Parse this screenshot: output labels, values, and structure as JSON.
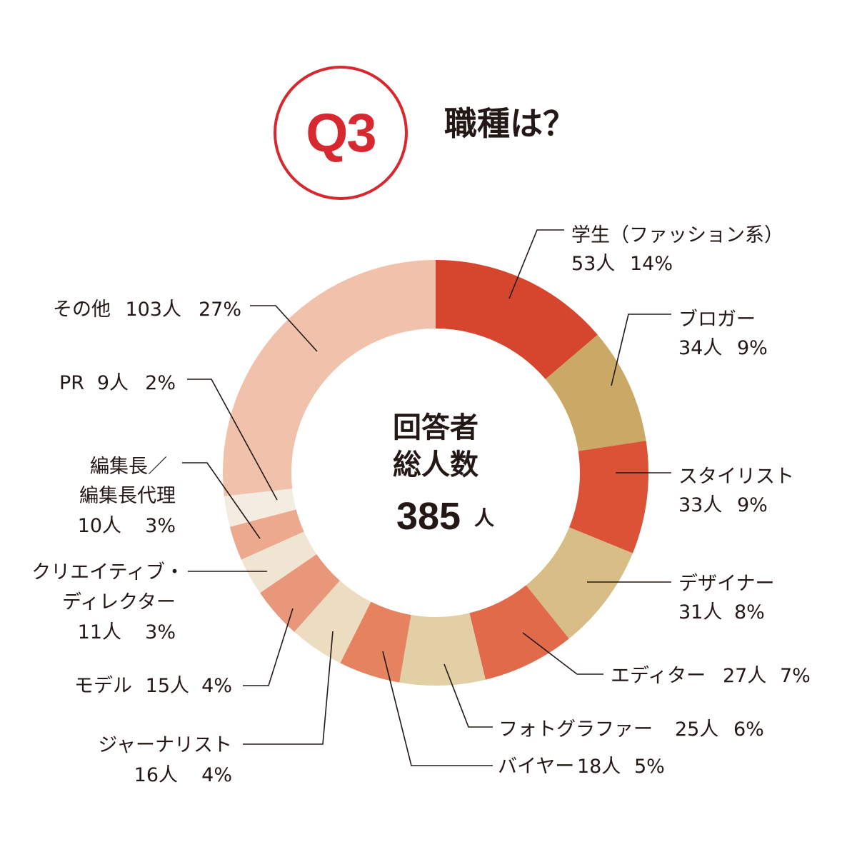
{
  "header": {
    "badge": "Q3",
    "question": "職種は？"
  },
  "center": {
    "line1": "回答者",
    "line2": "総人数",
    "total": "385",
    "unit": "人"
  },
  "colors": {
    "accent": "#d7282f"
  },
  "chart_data": {
    "type": "pie",
    "style": "donut",
    "total": 385,
    "series": [
      {
        "name": "学生（ファッション系）",
        "count": 53,
        "percent": 14,
        "count_label": "53人",
        "percent_label": "14%",
        "color": "#d6452e"
      },
      {
        "name": "ブロガー",
        "count": 34,
        "percent": 9,
        "count_label": "34人",
        "percent_label": "9%",
        "color": "#c9a965"
      },
      {
        "name": "スタイリスト",
        "count": 33,
        "percent": 9,
        "count_label": "33人",
        "percent_label": "9%",
        "color": "#dc5236"
      },
      {
        "name": "デザイナー",
        "count": 31,
        "percent": 8,
        "count_label": "31人",
        "percent_label": "8%",
        "color": "#d8bd86"
      },
      {
        "name": "エディター",
        "count": 27,
        "percent": 7,
        "count_label": "27人",
        "percent_label": "7%",
        "color": "#e06a4a"
      },
      {
        "name": "フォトグラファー",
        "count": 25,
        "percent": 6,
        "count_label": "25人",
        "percent_label": "6%",
        "color": "#e3cfa6"
      },
      {
        "name": "バイヤー",
        "count": 18,
        "percent": 5,
        "count_label": "18人",
        "percent_label": "5%",
        "color": "#e5825f"
      },
      {
        "name": "ジャーナリスト",
        "count": 16,
        "percent": 4,
        "count_label": "16人",
        "percent_label": "4%",
        "color": "#ecdcc0"
      },
      {
        "name": "モデル",
        "count": 15,
        "percent": 4,
        "count_label": "15人",
        "percent_label": "4%",
        "color": "#e8977b"
      },
      {
        "name": "クリエイティブ・ディレクター",
        "count": 11,
        "percent": 3,
        "count_label": "11人",
        "percent_label": "3%",
        "color": "#f0e4d2"
      },
      {
        "name": "編集長／編集長代理",
        "count": 10,
        "percent": 3,
        "count_label": "10人",
        "percent_label": "3%",
        "color": "#eca98d"
      },
      {
        "name": "PR",
        "count": 9,
        "percent": 2,
        "count_label": "9人",
        "percent_label": "2%",
        "color": "#f3ece0"
      },
      {
        "name": "その他",
        "count": 103,
        "percent": 27,
        "count_label": "103人",
        "percent_label": "27%",
        "color": "#f0c1ab"
      }
    ]
  }
}
